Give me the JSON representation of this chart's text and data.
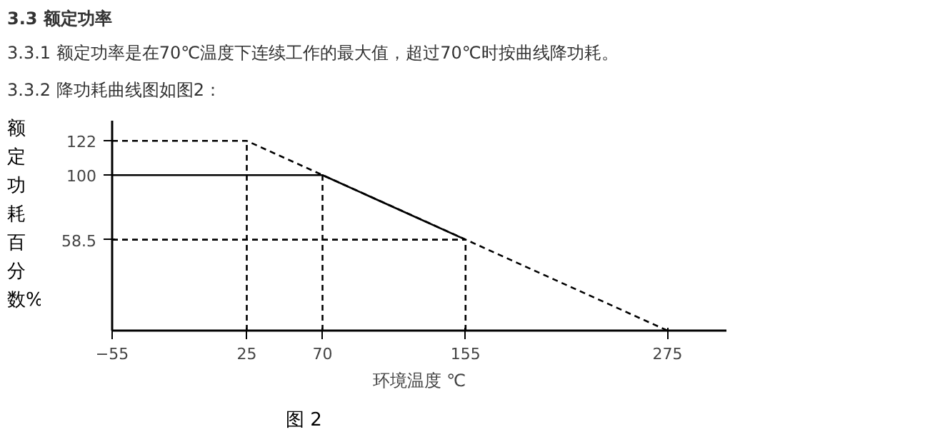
{
  "chart_data": {
    "type": "line",
    "title": "3.3 额定功率",
    "annotations": [
      "3.3.1   额定功率是在70℃温度下连续工作的最大值，超过70℃时按曲线降功耗。",
      "3.3.2   降功耗曲线图如图2：",
      "图 2"
    ],
    "xlabel": "环境温度 ℃",
    "ylabel": "额定功耗百分数%",
    "xlim": [
      -55,
      310
    ],
    "ylim": [
      0,
      135
    ],
    "xticks": [
      -55,
      25,
      70,
      155,
      275
    ],
    "yticks": [
      58.5,
      100,
      122
    ],
    "series": [
      {
        "color": "#000000",
        "line_style": "solid",
        "x": [
          -55,
          70,
          155
        ],
        "values": [
          100,
          100,
          58.5
        ]
      },
      {
        "color": "#000000",
        "line_style": "dashed",
        "x": [
          -55,
          25,
          275
        ],
        "values": [
          122,
          122,
          0
        ]
      },
      {
        "color": "#000000",
        "line_style": "dashed",
        "x": [
          25,
          25
        ],
        "values": [
          0,
          122
        ]
      },
      {
        "color": "#000000",
        "line_style": "dashed",
        "x": [
          70,
          70
        ],
        "values": [
          0,
          100
        ]
      },
      {
        "color": "#000000",
        "line_style": "dashed",
        "x": [
          155,
          155
        ],
        "values": [
          0,
          58.5
        ]
      },
      {
        "color": "#000000",
        "line_style": "dashed",
        "x": [
          -55,
          155
        ],
        "values": [
          58.5,
          58.5
        ]
      }
    ]
  }
}
